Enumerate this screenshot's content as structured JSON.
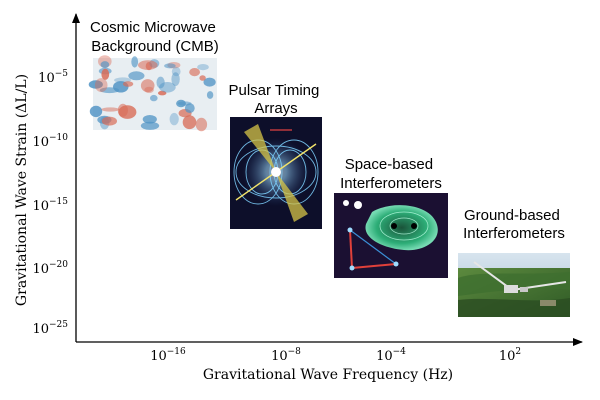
{
  "axes": {
    "xlabel": "Gravitational Wave Frequency (Hz)",
    "ylabel": "Gravitational Wave Strain (ΔL/L)",
    "x_ticks": [
      {
        "base": "10",
        "exp": "−16"
      },
      {
        "base": "10",
        "exp": "−8"
      },
      {
        "base": "10",
        "exp": "−4"
      },
      {
        "base": "10",
        "exp": "2"
      }
    ],
    "y_ticks": [
      {
        "base": "10",
        "exp": "−5"
      },
      {
        "base": "10",
        "exp": "−10"
      },
      {
        "base": "10",
        "exp": "−15"
      },
      {
        "base": "10",
        "exp": "−20"
      },
      {
        "base": "10",
        "exp": "−25"
      }
    ]
  },
  "sources": [
    {
      "label_lines": [
        "Cosmic Microwave",
        "Background (CMB)"
      ],
      "image": "cmb-polarization-map"
    },
    {
      "label_lines": [
        "Pulsar Timing",
        "Arrays"
      ],
      "image": "pulsar-beam-illustration"
    },
    {
      "label_lines": [
        "Space-based",
        "Interferometers"
      ],
      "image": "space-interferometer-illustration"
    },
    {
      "label_lines": [
        "Ground-based",
        "Interferometers"
      ],
      "image": "ground-observatory-aerial-photo"
    }
  ],
  "colors": {
    "axis": "#000000",
    "cmb_red": "#d86a55",
    "cmb_blue": "#4f93c4",
    "space_bg": "#0b0a1e"
  }
}
